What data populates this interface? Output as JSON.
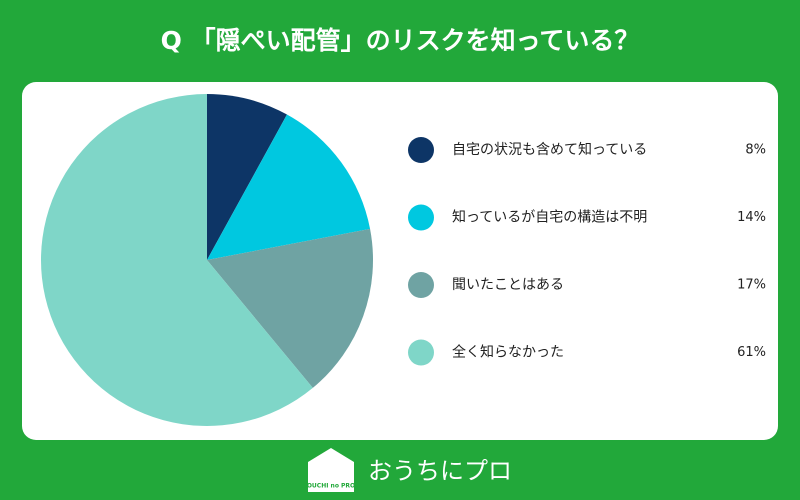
{
  "chart_data": {
    "type": "pie",
    "title": "Q 「隠ぺい配管」のリスクを知っている？",
    "categories": [
      "自宅の状況も含めて知っている",
      "知っているが自宅の構造は不明",
      "聞いたことはある",
      "全く知らなかった"
    ],
    "values": [
      8,
      14,
      17,
      61
    ],
    "value_labels": [
      "8%",
      "14%",
      "17%",
      "61%"
    ],
    "colors": [
      "#0d3566",
      "#00c8e0",
      "#6fa3a3",
      "#7fd6c8"
    ]
  },
  "footer": {
    "logo_text": "OUCHI no PRO",
    "brand": "おうちにプロ"
  }
}
